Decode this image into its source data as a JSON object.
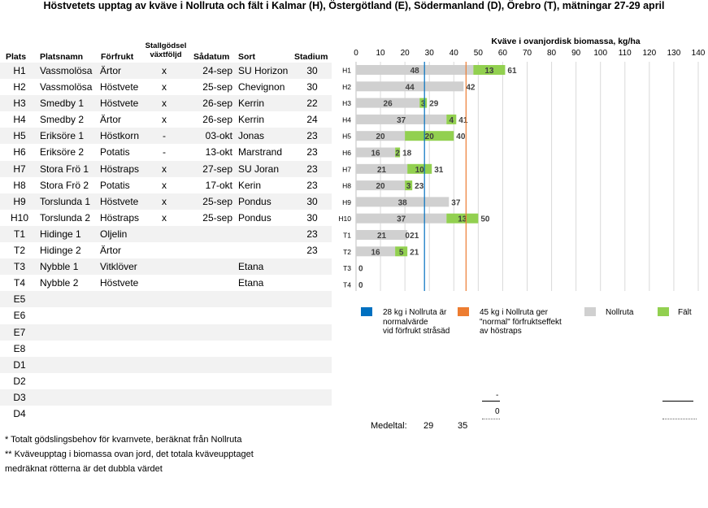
{
  "title": "Höstvetets upptag av kväve i Nollruta och fält i Kalmar (H), Östergötland (E), Södermanland (D), Örebro (T), mätningar 27-29 april",
  "table": {
    "headers": {
      "plats": "Plats",
      "platsnamn": "Platsnamn",
      "forfrukt": "Förfrukt",
      "stallgodsel_1": "Stallgödsel",
      "stallgodsel_2": "växtföljd",
      "sadatum": "Sådatum",
      "sort": "Sort",
      "stadium": "Stadium"
    },
    "rows": [
      {
        "plats": "H1",
        "namn": "Vassmolösa",
        "forfrukt": "Ärtor",
        "stall": "x",
        "sad": "24-sep",
        "sort": "SU Horizon",
        "stadium": "30"
      },
      {
        "plats": "H2",
        "namn": "Vassmolösa",
        "forfrukt": "Höstvete",
        "stall": "x",
        "sad": "25-sep",
        "sort": "Chevignon",
        "stadium": "30"
      },
      {
        "plats": "H3",
        "namn": "Smedby 1",
        "forfrukt": "Höstvete",
        "stall": "x",
        "sad": "26-sep",
        "sort": "Kerrin",
        "stadium": "22"
      },
      {
        "plats": "H4",
        "namn": "Smedby 2",
        "forfrukt": "Ärtor",
        "stall": "x",
        "sad": "26-sep",
        "sort": "Kerrin",
        "stadium": "24"
      },
      {
        "plats": "H5",
        "namn": "Eriksöre 1",
        "forfrukt": "Höstkorn",
        "stall": "-",
        "sad": "03-okt",
        "sort": "Jonas",
        "stadium": "23"
      },
      {
        "plats": "H6",
        "namn": "Eriksöre 2",
        "forfrukt": "Potatis",
        "stall": "-",
        "sad": "13-okt",
        "sort": "Marstrand",
        "stadium": "23"
      },
      {
        "plats": "H7",
        "namn": "Stora Frö 1",
        "forfrukt": "Höstraps",
        "stall": "x",
        "sad": "27-sep",
        "sort": "SU Joran",
        "stadium": "23"
      },
      {
        "plats": "H8",
        "namn": "Stora Frö 2",
        "forfrukt": "Potatis",
        "stall": "x",
        "sad": "17-okt",
        "sort": "Kerin",
        "stadium": "23"
      },
      {
        "plats": "H9",
        "namn": "Torslunda 1",
        "forfrukt": "Höstvete",
        "stall": "x",
        "sad": "25-sep",
        "sort": "Pondus",
        "stadium": "30"
      },
      {
        "plats": "H10",
        "namn": "Torslunda 2",
        "forfrukt": "Höstraps",
        "stall": "x",
        "sad": "25-sep",
        "sort": "Pondus",
        "stadium": "30"
      },
      {
        "plats": "T1",
        "namn": "Hidinge 1",
        "forfrukt": "Oljelin",
        "stall": "",
        "sad": "",
        "sort": "",
        "stadium": "23"
      },
      {
        "plats": "T2",
        "namn": "Hidinge 2",
        "forfrukt": "Ärtor",
        "stall": "",
        "sad": "",
        "sort": "",
        "stadium": "23"
      },
      {
        "plats": "T3",
        "namn": "Nybble 1",
        "forfrukt": "Vitklöver",
        "stall": "",
        "sad": "",
        "sort": "Etana",
        "stadium": ""
      },
      {
        "plats": "T4",
        "namn": "Nybble 2",
        "forfrukt": "Höstvete",
        "stall": "",
        "sad": "",
        "sort": "Etana",
        "stadium": ""
      },
      {
        "plats": "E5",
        "namn": "",
        "forfrukt": "",
        "stall": "",
        "sad": "",
        "sort": "",
        "stadium": ""
      },
      {
        "plats": "E6",
        "namn": "",
        "forfrukt": "",
        "stall": "",
        "sad": "",
        "sort": "",
        "stadium": ""
      },
      {
        "plats": "E7",
        "namn": "",
        "forfrukt": "",
        "stall": "",
        "sad": "",
        "sort": "",
        "stadium": ""
      },
      {
        "plats": "E8",
        "namn": "",
        "forfrukt": "",
        "stall": "",
        "sad": "",
        "sort": "",
        "stadium": ""
      },
      {
        "plats": "D1",
        "namn": "",
        "forfrukt": "",
        "stall": "",
        "sad": "",
        "sort": "",
        "stadium": ""
      },
      {
        "plats": "D2",
        "namn": "",
        "forfrukt": "",
        "stall": "",
        "sad": "",
        "sort": "",
        "stadium": ""
      },
      {
        "plats": "D3",
        "namn": "",
        "forfrukt": "",
        "stall": "",
        "sad": "",
        "sort": "",
        "stadium": ""
      },
      {
        "plats": "D4",
        "namn": "",
        "forfrukt": "",
        "stall": "",
        "sad": "",
        "sort": "",
        "stadium": ""
      }
    ]
  },
  "chart_data": {
    "type": "bar",
    "orientation": "horizontal",
    "stacked": true,
    "title": "Kväve i ovanjordisk biomassa, kg/ha",
    "x_axis_position": "top",
    "xlim": [
      0,
      140
    ],
    "xticks": [
      0,
      10,
      20,
      30,
      40,
      50,
      60,
      70,
      80,
      90,
      100,
      110,
      120,
      130,
      140
    ],
    "grid": true,
    "categories": [
      "H1",
      "H2",
      "H3",
      "H4",
      "H5",
      "H6",
      "H7",
      "H8",
      "H9",
      "H10",
      "T1",
      "T2",
      "T3",
      "T4"
    ],
    "series": [
      {
        "name": "Nollruta",
        "color": "#d0d0d0",
        "values": [
          48,
          44,
          26,
          37,
          20,
          16,
          21,
          20,
          38,
          37,
          21,
          16,
          0,
          0
        ]
      },
      {
        "name": "Fält",
        "color": "#92d050",
        "values": [
          13,
          -2,
          3,
          4,
          20,
          2,
          10,
          3,
          -1,
          13,
          0,
          5,
          0,
          0
        ]
      }
    ],
    "segment_labels": {
      "Nollruta": [
        "48",
        "44",
        "26",
        "37",
        "20",
        "16",
        "21",
        "20",
        "38",
        "37",
        "21",
        "16",
        "",
        ""
      ],
      "Fält": [
        "13",
        "",
        "3",
        "4",
        "20",
        "2",
        "10",
        "3",
        "",
        "13",
        "0",
        "5",
        "",
        ""
      ]
    },
    "total_labels": [
      "61",
      "42",
      "29",
      "41",
      "40",
      "18",
      "31",
      "23",
      "37",
      "50",
      "21",
      "21",
      "0",
      "0"
    ],
    "reference_lines": [
      {
        "value": 28,
        "color": "#0070c0",
        "label": "28 kg i Nollruta är normalvärde vid förfrukt stråsäd",
        "label_lines": [
          "28 kg i Nollruta är",
          "normalvärde",
          "vid förfrukt stråsäd"
        ]
      },
      {
        "value": 45,
        "color": "#ed7d31",
        "label": "45 kg i Nollruta ger \"normal\" förfruktseffekt av höstraps",
        "label_lines": [
          "45 kg i Nollruta ger",
          "\"normal\" förfruktseffekt",
          "av höstraps"
        ]
      }
    ],
    "legend": {
      "placement": "bottom",
      "items": [
        "Nollruta",
        "Fält"
      ]
    }
  },
  "summary": {
    "medeltal_label": "Medeltal:",
    "medeltal_values": [
      "29",
      "35"
    ],
    "dash_text": "-",
    "zero_text": "0"
  },
  "footnotes": [
    "* Totalt gödslingsbehov för  kvarnvete, beräknat från Nollruta",
    "** Kväveupptag i biomassa ovan jord, det totala kväveupptaget",
    "medräknat rötterna är det dubbla värdet"
  ]
}
